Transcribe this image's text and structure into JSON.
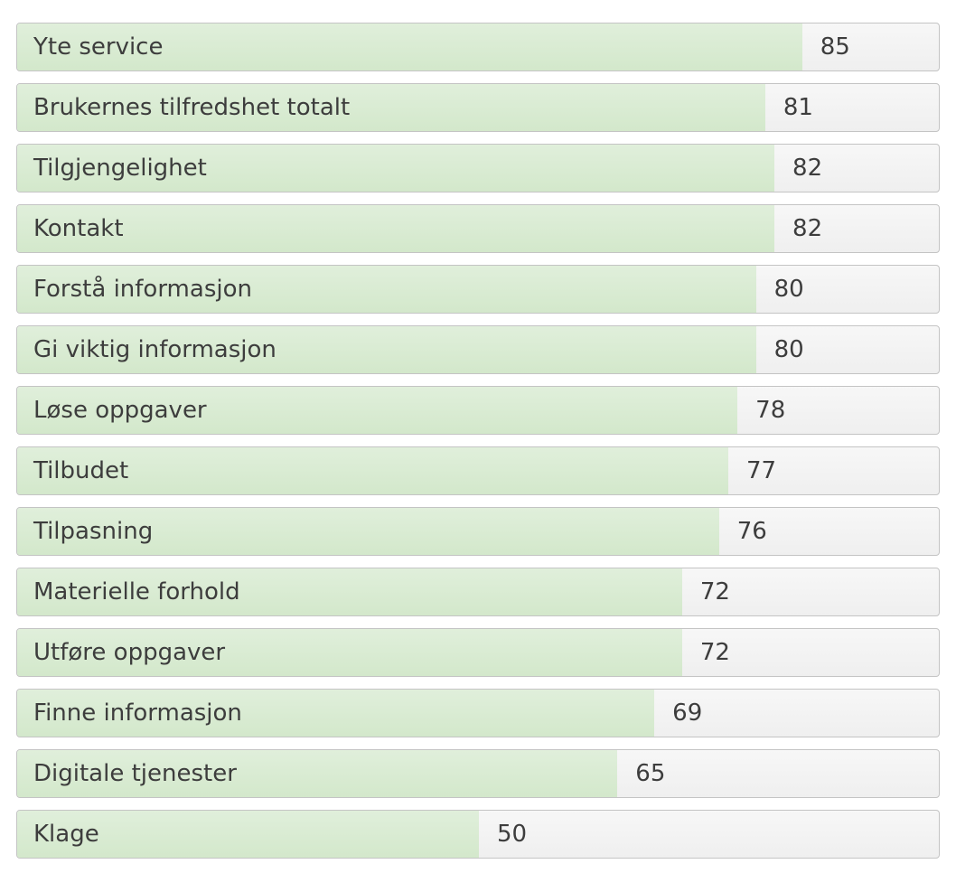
{
  "chart_data": {
    "type": "bar",
    "orientation": "horizontal",
    "xlim": [
      0,
      100
    ],
    "colors": {
      "fill": "#d6eacf",
      "track": "#f2f2f2",
      "border": "#c4c4c4",
      "text": "#3d3d3d"
    },
    "categories": [
      "Yte service",
      "Brukernes tilfredshet totalt",
      "Tilgjengelighet",
      "Kontakt",
      "Forstå informasjon",
      "Gi viktig informasjon",
      "Løse oppgaver",
      "Tilbudet",
      "Tilpasning",
      "Materielle forhold",
      "Utføre oppgaver",
      "Finne informasjon",
      "Digitale tjenester",
      "Klage"
    ],
    "values": [
      85,
      81,
      82,
      82,
      80,
      80,
      78,
      77,
      76,
      72,
      72,
      69,
      65,
      50
    ]
  }
}
